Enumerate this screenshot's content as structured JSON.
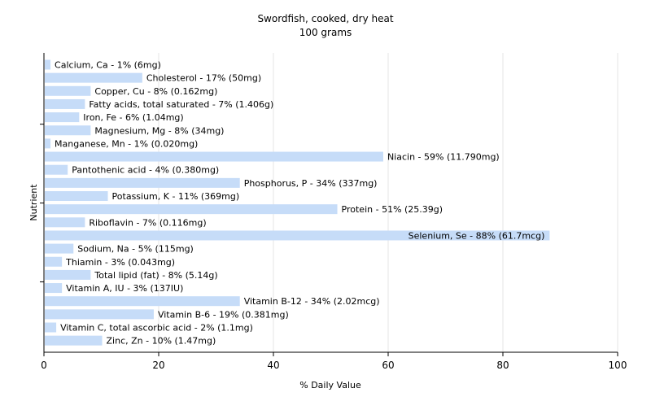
{
  "chart_data": {
    "type": "bar",
    "orientation": "horizontal",
    "title": "Swordfish, cooked, dry heat",
    "subtitle": "100 grams",
    "xlabel": "% Daily Value",
    "ylabel": "Nutrient",
    "xlim": [
      0,
      100
    ],
    "x_ticks": [
      "0",
      "20",
      "40",
      "60",
      "80",
      "100"
    ],
    "grid": true,
    "colors": {
      "bar": "#c6dcf8",
      "grid": "#e6e6e6",
      "axis": "#000000"
    },
    "categories": [
      "Calcium, Ca",
      "Cholesterol",
      "Copper, Cu",
      "Fatty acids, total saturated",
      "Iron, Fe",
      "Magnesium, Mg",
      "Manganese, Mn",
      "Niacin",
      "Pantothenic acid",
      "Phosphorus, P",
      "Potassium, K",
      "Protein",
      "Riboflavin",
      "Selenium, Se",
      "Sodium, Na",
      "Thiamin",
      "Total lipid (fat)",
      "Vitamin A, IU",
      "Vitamin B-12",
      "Vitamin B-6",
      "Vitamin C, total ascorbic acid",
      "Zinc, Zn"
    ],
    "values": [
      1,
      17,
      8,
      7,
      6,
      8,
      1,
      59,
      4,
      34,
      11,
      51,
      7,
      88,
      5,
      3,
      8,
      3,
      34,
      19,
      2,
      10
    ],
    "labels": [
      "Calcium, Ca - 1% (6mg)",
      "Cholesterol - 17% (50mg)",
      "Copper, Cu - 8% (0.162mg)",
      "Fatty acids, total saturated - 7% (1.406g)",
      "Iron, Fe - 6% (1.04mg)",
      "Magnesium, Mg - 8% (34mg)",
      "Manganese, Mn - 1% (0.020mg)",
      "Niacin - 59% (11.790mg)",
      "Pantothenic acid - 4% (0.380mg)",
      "Phosphorus, P - 34% (337mg)",
      "Potassium, K - 11% (369mg)",
      "Protein - 51% (25.39g)",
      "Riboflavin - 7% (0.116mg)",
      "Selenium, Se - 88% (61.7mcg)",
      "Sodium, Na - 5% (115mg)",
      "Thiamin - 3% (0.043mg)",
      "Total lipid (fat) - 8% (5.14g)",
      "Vitamin A, IU - 3% (137IU)",
      "Vitamin B-12 - 34% (2.02mcg)",
      "Vitamin B-6 - 19% (0.381mg)",
      "Vitamin C, total ascorbic acid - 2% (1.1mg)",
      "Zinc, Zn - 10% (1.47mg)"
    ]
  }
}
